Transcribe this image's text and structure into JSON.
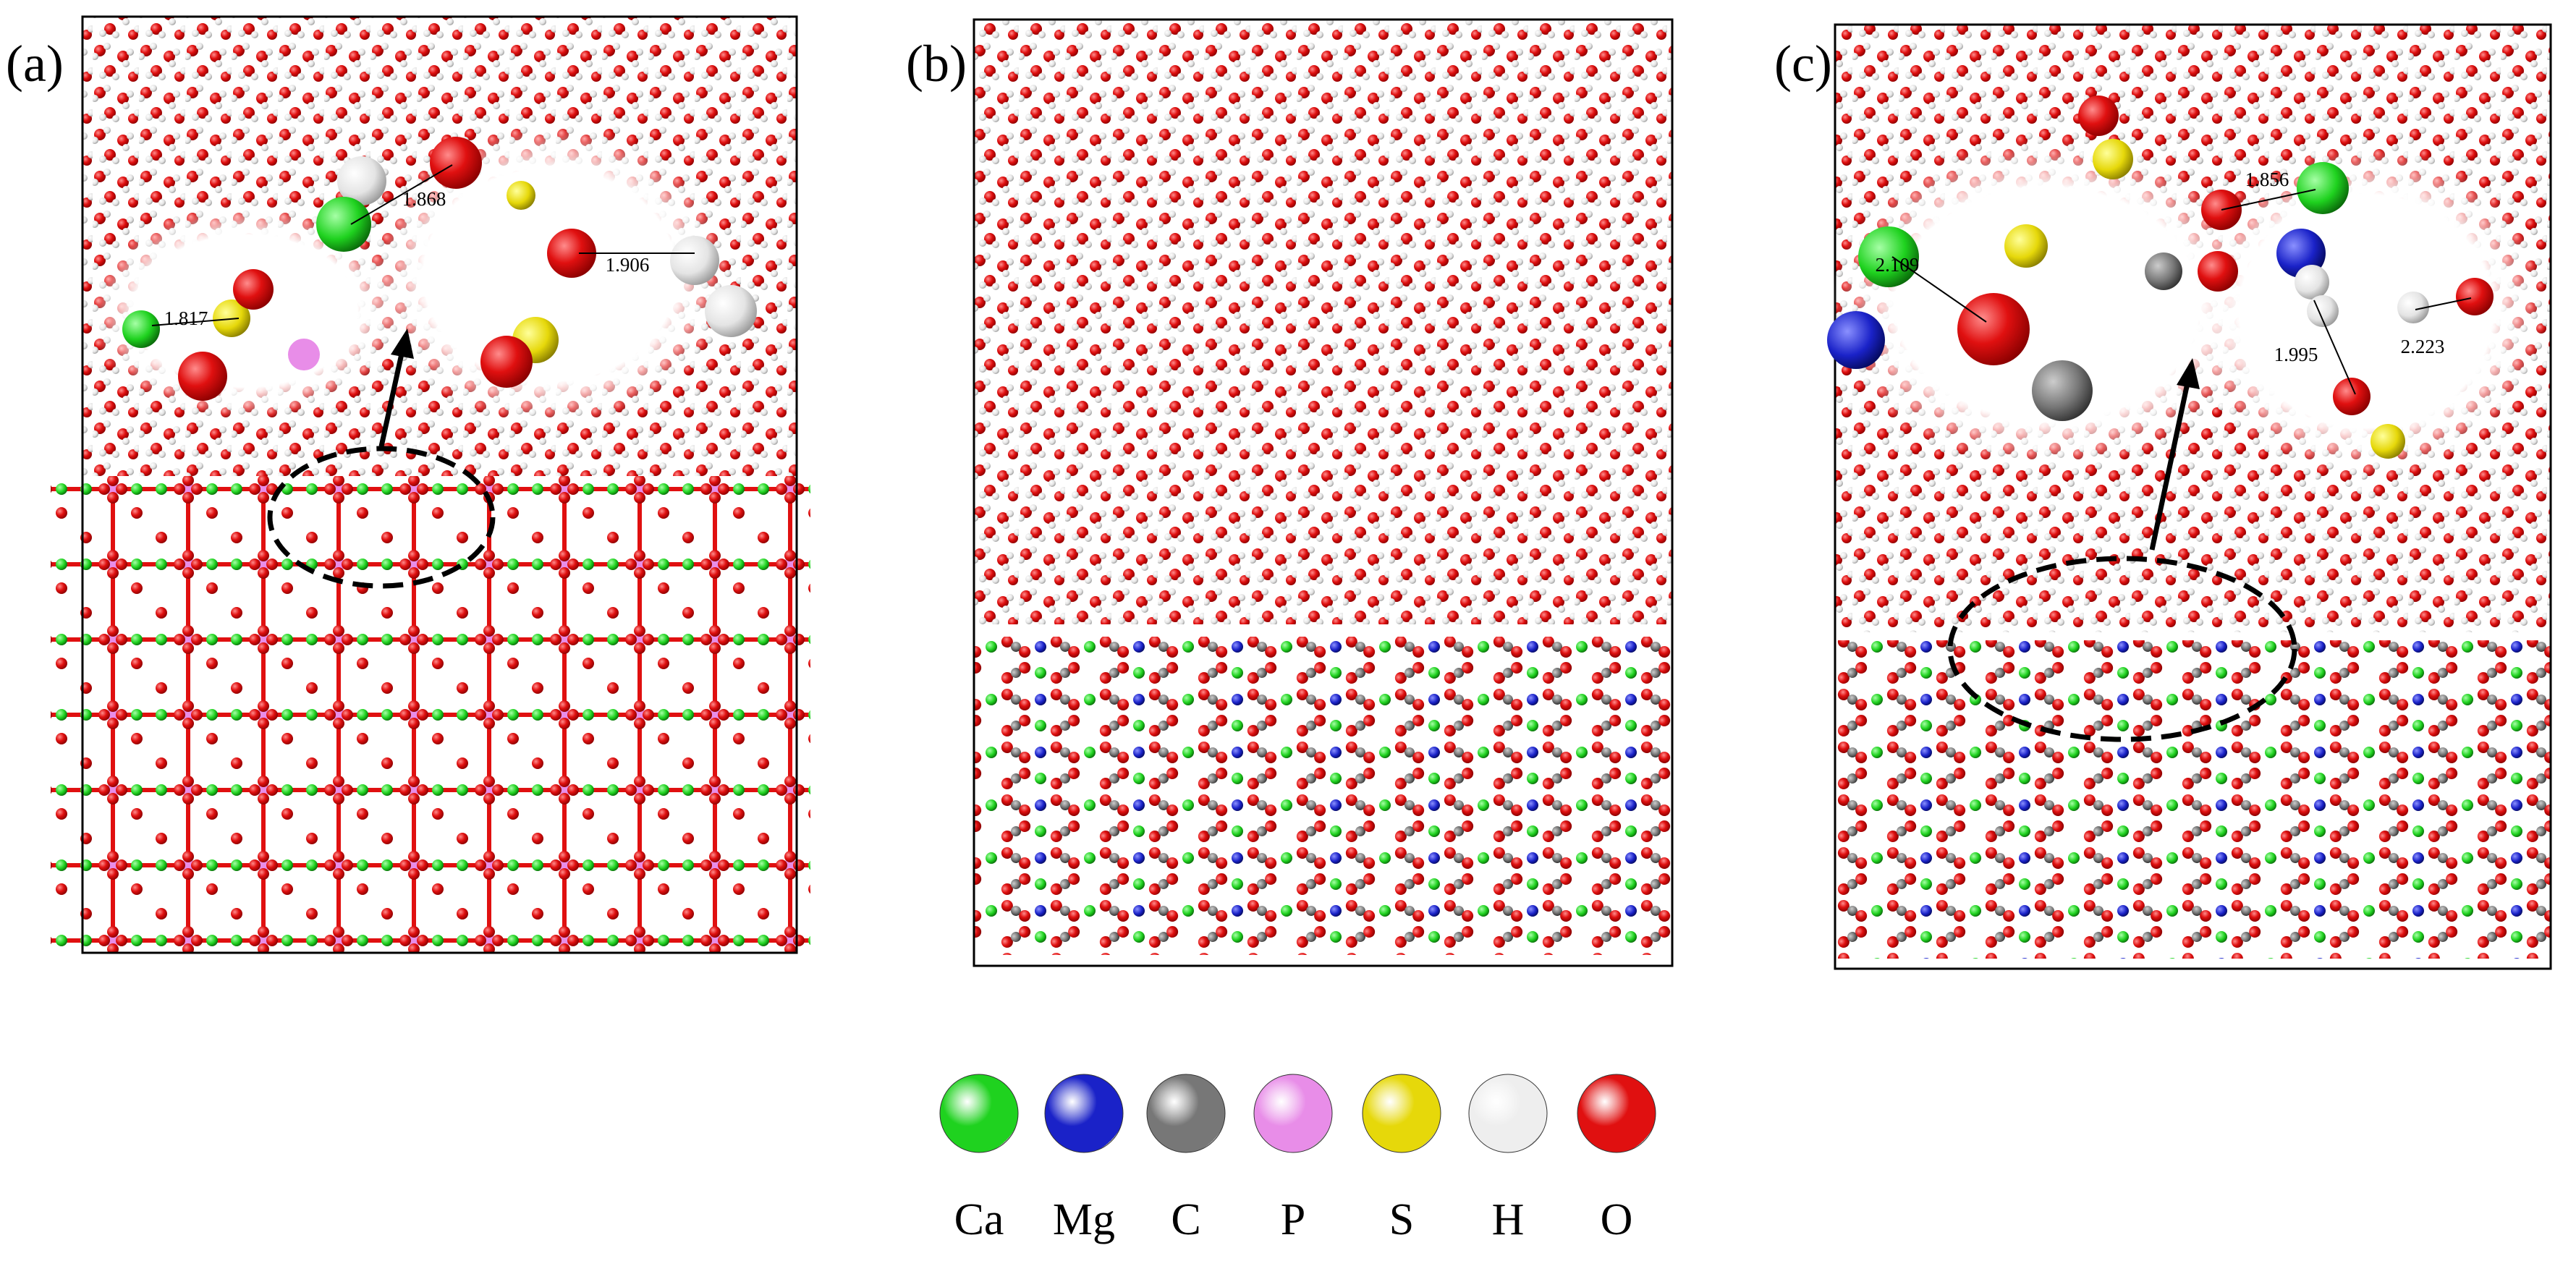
{
  "panels": [
    {
      "label": "(a)",
      "distances": [
        1.868,
        1.906,
        1.817
      ]
    },
    {
      "label": "(b)",
      "distances": []
    },
    {
      "label": "(c)",
      "distances": [
        1.856,
        2.109,
        1.995,
        2.223
      ]
    }
  ],
  "legend": [
    {
      "label": "Ca",
      "color": "#1fd21f"
    },
    {
      "label": "Mg",
      "color": "#1a22c8"
    },
    {
      "label": "C",
      "color": "#777777"
    },
    {
      "label": "P",
      "color": "#e88de8"
    },
    {
      "label": "S",
      "color": "#e6d80a"
    },
    {
      "label": "H",
      "color": "#eeeeee"
    },
    {
      "label": "O",
      "color": "#e01010"
    }
  ]
}
